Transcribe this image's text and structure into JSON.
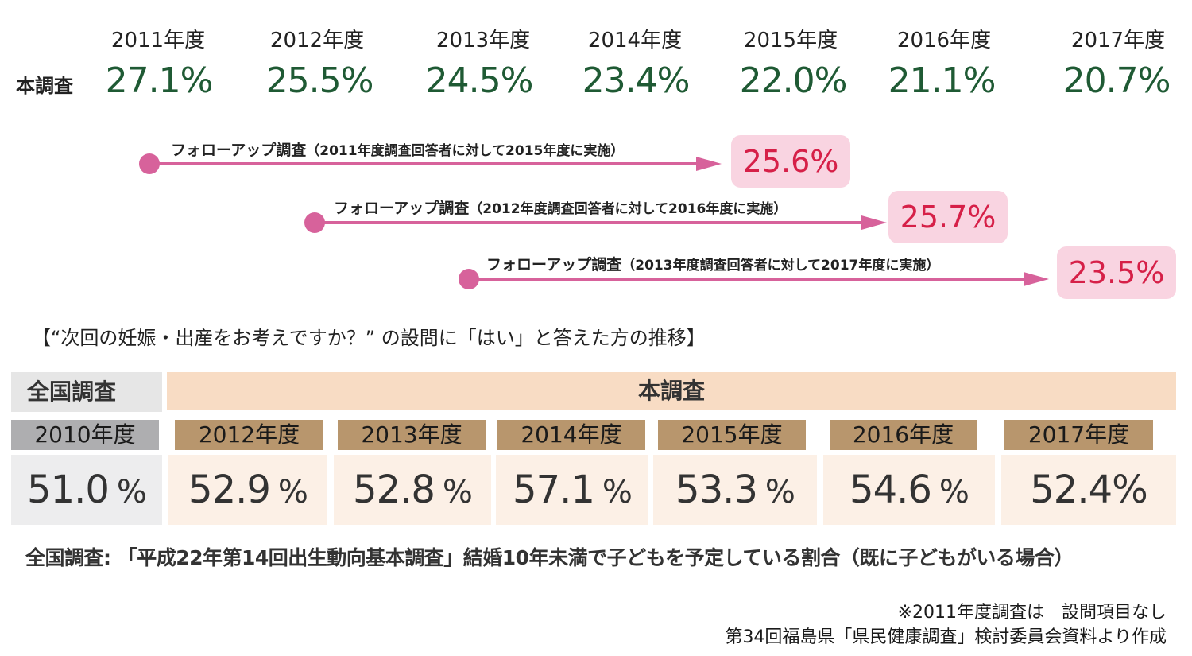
{
  "chart_data": [
    {
      "type": "table",
      "row_label": "本調査",
      "categories": [
        "2011年度",
        "2012年度",
        "2013年度",
        "2014年度",
        "2015年度",
        "2016年度",
        "2017年度"
      ],
      "values": [
        "27.1%",
        "25.5%",
        "24.5%",
        "23.4%",
        "22.0%",
        "21.1%",
        "20.7%"
      ]
    },
    {
      "type": "table",
      "follow_ups": [
        {
          "label": "フォローアップ調査",
          "note": "（2011年度調査回答者に対して2015年度に実施）",
          "value": "25.6%"
        },
        {
          "label": "フォローアップ調査",
          "note": "（2012年度調査回答者に対して2016年度に実施）",
          "value": "25.7%"
        },
        {
          "label": "フォローアップ調査",
          "note": "（2013年度調査回答者に対して2017年度に実施）",
          "value": "23.5%"
        }
      ]
    },
    {
      "type": "table",
      "title": "【“次回の妊娠・出産をお考えですか？” の設問に「はい」と答えた方の推移】",
      "national_header": "全国調査",
      "main_header": "本調査",
      "national": {
        "year": "2010年度",
        "value": "51.0",
        "unit": "%"
      },
      "main": [
        {
          "year": "2012年度",
          "value": "52.9",
          "unit": "%"
        },
        {
          "year": "2013年度",
          "value": "52.8",
          "unit": "%"
        },
        {
          "year": "2014年度",
          "value": "57.1",
          "unit": "%"
        },
        {
          "year": "2015年度",
          "value": "53.3",
          "unit": "%"
        },
        {
          "year": "2016年度",
          "value": "54.6",
          "unit": "%"
        },
        {
          "year": "2017年度",
          "value": "52.4",
          "unit": "%"
        }
      ]
    }
  ],
  "colors": {
    "top_value": "#1f5a34",
    "arrow": "#d7629b",
    "follow_box": "#f9d4e1",
    "follow_value": "#d62048",
    "main_header": "#f8dcc4",
    "main_year": "#b8966d",
    "main_value_bg": "#fcf0e6",
    "national_year": "#aeaeb0",
    "national_value_bg": "#ededee"
  },
  "notes": {
    "national_source": "全国調査: 「平成22年第14回出生動向基本調査」結婚10年未満で子どもを予定している割合（既に子どもがいる場合）",
    "line1": "※2011年度調査は　設問項目なし",
    "line2": "第34回福島県「県民健康調査」検討委員会資料より作成"
  }
}
